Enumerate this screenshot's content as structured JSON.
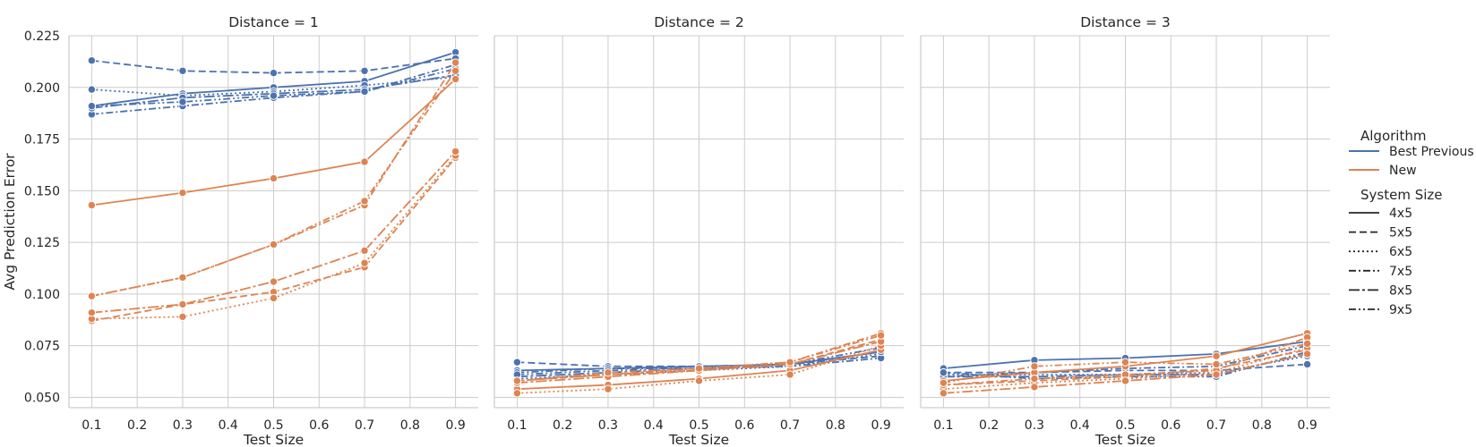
{
  "chart_data": [
    {
      "type": "line",
      "title": "Distance = 1",
      "xlabel": "Test Size",
      "ylabel": "Avg Prediction Error",
      "xlim": [
        0.05,
        0.95
      ],
      "ylim": [
        0.045,
        0.225
      ],
      "x_ticks": [
        "0.1",
        "0.2",
        "0.3",
        "0.4",
        "0.5",
        "0.6",
        "0.7",
        "0.8",
        "0.9"
      ],
      "y_ticks": [
        "0.050",
        "0.075",
        "0.100",
        "0.125",
        "0.150",
        "0.175",
        "0.200",
        "0.225"
      ],
      "x": [
        0.1,
        0.3,
        0.5,
        0.7,
        0.9
      ],
      "series": [
        {
          "algorithm": "Best Previous",
          "system_size": "4x5",
          "values": [
            0.191,
            0.197,
            0.2,
            0.203,
            0.217
          ]
        },
        {
          "algorithm": "Best Previous",
          "system_size": "5x5",
          "values": [
            0.213,
            0.208,
            0.207,
            0.208,
            0.214
          ]
        },
        {
          "algorithm": "Best Previous",
          "system_size": "6x5",
          "values": [
            0.199,
            0.196,
            0.198,
            0.201,
            0.205
          ]
        },
        {
          "algorithm": "Best Previous",
          "system_size": "7x5",
          "values": [
            0.187,
            0.191,
            0.195,
            0.198,
            0.211
          ]
        },
        {
          "algorithm": "Best Previous",
          "system_size": "8x5",
          "values": [
            0.19,
            0.195,
            0.197,
            0.199,
            0.206
          ]
        },
        {
          "algorithm": "Best Previous",
          "system_size": "9x5",
          "values": [
            0.191,
            0.193,
            0.196,
            0.198,
            0.209
          ]
        },
        {
          "algorithm": "New",
          "system_size": "4x5",
          "values": [
            0.143,
            0.149,
            0.156,
            0.164,
            0.204
          ]
        },
        {
          "algorithm": "New",
          "system_size": "5x5",
          "values": [
            0.087,
            0.095,
            0.101,
            0.113,
            0.166
          ]
        },
        {
          "algorithm": "New",
          "system_size": "6x5",
          "values": [
            0.088,
            0.089,
            0.098,
            0.115,
            0.167
          ]
        },
        {
          "algorithm": "New",
          "system_size": "7x5",
          "values": [
            0.099,
            0.108,
            0.124,
            0.143,
            0.212
          ]
        },
        {
          "algorithm": "New",
          "system_size": "8x5",
          "values": [
            0.091,
            0.095,
            0.106,
            0.121,
            0.169
          ]
        },
        {
          "algorithm": "New",
          "system_size": "9x5",
          "values": [
            0.099,
            0.108,
            0.124,
            0.145,
            0.208
          ]
        }
      ]
    },
    {
      "type": "line",
      "title": "Distance = 2",
      "xlabel": "Test Size",
      "ylabel": "",
      "xlim": [
        0.05,
        0.95
      ],
      "ylim": [
        0.045,
        0.225
      ],
      "x_ticks": [
        "0.1",
        "0.2",
        "0.3",
        "0.4",
        "0.5",
        "0.6",
        "0.7",
        "0.8",
        "0.9"
      ],
      "x": [
        0.1,
        0.3,
        0.5,
        0.7,
        0.9
      ],
      "series": [
        {
          "algorithm": "Best Previous",
          "system_size": "4x5",
          "values": [
            0.063,
            0.064,
            0.065,
            0.066,
            0.072
          ]
        },
        {
          "algorithm": "Best Previous",
          "system_size": "5x5",
          "values": [
            0.067,
            0.065,
            0.065,
            0.066,
            0.07
          ]
        },
        {
          "algorithm": "Best Previous",
          "system_size": "6x5",
          "values": [
            0.059,
            0.061,
            0.063,
            0.065,
            0.071
          ]
        },
        {
          "algorithm": "Best Previous",
          "system_size": "7x5",
          "values": [
            0.062,
            0.064,
            0.064,
            0.065,
            0.069
          ]
        },
        {
          "algorithm": "Best Previous",
          "system_size": "8x5",
          "values": [
            0.06,
            0.062,
            0.064,
            0.066,
            0.072
          ]
        },
        {
          "algorithm": "Best Previous",
          "system_size": "9x5",
          "values": [
            0.061,
            0.063,
            0.064,
            0.066,
            0.074
          ]
        },
        {
          "algorithm": "New",
          "system_size": "4x5",
          "values": [
            0.054,
            0.056,
            0.059,
            0.063,
            0.073
          ]
        },
        {
          "algorithm": "New",
          "system_size": "5x5",
          "values": [
            0.058,
            0.061,
            0.063,
            0.066,
            0.078
          ]
        },
        {
          "algorithm": "New",
          "system_size": "6x5",
          "values": [
            0.052,
            0.054,
            0.058,
            0.061,
            0.075
          ]
        },
        {
          "algorithm": "New",
          "system_size": "7x5",
          "values": [
            0.058,
            0.061,
            0.064,
            0.067,
            0.081
          ]
        },
        {
          "algorithm": "New",
          "system_size": "8x5",
          "values": [
            0.057,
            0.06,
            0.063,
            0.066,
            0.077
          ]
        },
        {
          "algorithm": "New",
          "system_size": "9x5",
          "values": [
            0.058,
            0.062,
            0.064,
            0.067,
            0.08
          ]
        }
      ]
    },
    {
      "type": "line",
      "title": "Distance = 3",
      "xlabel": "Test Size",
      "ylabel": "",
      "xlim": [
        0.05,
        0.95
      ],
      "ylim": [
        0.045,
        0.225
      ],
      "x_ticks": [
        "0.1",
        "0.2",
        "0.3",
        "0.4",
        "0.5",
        "0.6",
        "0.7",
        "0.8",
        "0.9"
      ],
      "x": [
        0.1,
        0.3,
        0.5,
        0.7,
        0.9
      ],
      "series": [
        {
          "algorithm": "Best Previous",
          "system_size": "4x5",
          "values": [
            0.064,
            0.068,
            0.069,
            0.071,
            0.077
          ]
        },
        {
          "algorithm": "Best Previous",
          "system_size": "5x5",
          "values": [
            0.062,
            0.062,
            0.063,
            0.063,
            0.066
          ]
        },
        {
          "algorithm": "Best Previous",
          "system_size": "6x5",
          "values": [
            0.061,
            0.061,
            0.061,
            0.062,
            0.07
          ]
        },
        {
          "algorithm": "Best Previous",
          "system_size": "7x5",
          "values": [
            0.06,
            0.062,
            0.064,
            0.065,
            0.075
          ]
        },
        {
          "algorithm": "Best Previous",
          "system_size": "8x5",
          "values": [
            0.06,
            0.06,
            0.061,
            0.061,
            0.071
          ]
        },
        {
          "algorithm": "Best Previous",
          "system_size": "9x5",
          "values": [
            0.062,
            0.059,
            0.06,
            0.06,
            0.072
          ]
        },
        {
          "algorithm": "New",
          "system_size": "4x5",
          "values": [
            0.058,
            0.062,
            0.065,
            0.07,
            0.081
          ]
        },
        {
          "algorithm": "New",
          "system_size": "5x5",
          "values": [
            0.056,
            0.058,
            0.06,
            0.064,
            0.073
          ]
        },
        {
          "algorithm": "New",
          "system_size": "6x5",
          "values": [
            0.054,
            0.057,
            0.059,
            0.062,
            0.074
          ]
        },
        {
          "algorithm": "New",
          "system_size": "7x5",
          "values": [
            0.056,
            0.059,
            0.061,
            0.063,
            0.079
          ]
        },
        {
          "algorithm": "New",
          "system_size": "8x5",
          "values": [
            0.052,
            0.055,
            0.058,
            0.061,
            0.071
          ]
        },
        {
          "algorithm": "New",
          "system_size": "9x5",
          "values": [
            0.057,
            0.065,
            0.067,
            0.066,
            0.076
          ]
        }
      ]
    }
  ],
  "legend": {
    "placement": "right",
    "hue_title": "Algorithm",
    "hue_items": [
      {
        "label": "Best Previous",
        "color": "#4c72b0"
      },
      {
        "label": "New",
        "color": "#dd8452"
      }
    ],
    "style_title": "System Size",
    "style_items": [
      {
        "label": "4x5",
        "dash": "solid"
      },
      {
        "label": "5x5",
        "dash": "dashed"
      },
      {
        "label": "6x5",
        "dash": "dotted"
      },
      {
        "label": "7x5",
        "dash": "dashdot"
      },
      {
        "label": "8x5",
        "dash": "long-dashdot"
      },
      {
        "label": "9x5",
        "dash": "dashdotdot"
      }
    ]
  },
  "style": {
    "grid": true,
    "background": "#ffffff",
    "grid_color": "#cccccc",
    "text_color": "#262626"
  }
}
